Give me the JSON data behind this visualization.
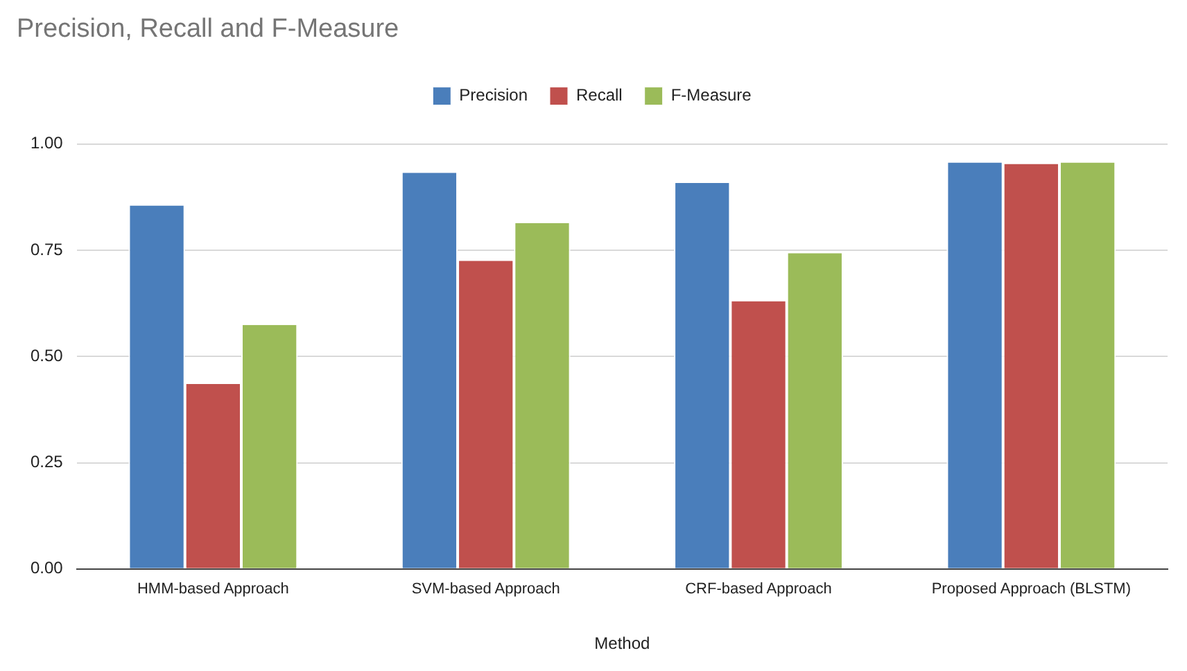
{
  "chart_data": {
    "type": "bar",
    "title": "Precision, Recall and F-Measure",
    "xlabel": "Method",
    "categories": [
      "HMM-based Approach",
      "SVM-based Approach",
      "CRF-based Approach",
      "Proposed Approach (BLSTM)"
    ],
    "series": [
      {
        "name": "Precision",
        "color": "#4a7ebb",
        "values": [
          0.855,
          0.932,
          0.908,
          0.956
        ]
      },
      {
        "name": "Recall",
        "color": "#c0504d",
        "values": [
          0.435,
          0.725,
          0.63,
          0.953
        ]
      },
      {
        "name": "F-Measure",
        "color": "#9bbb59",
        "values": [
          0.574,
          0.814,
          0.743,
          0.956
        ]
      }
    ],
    "ylim": [
      0,
      1
    ],
    "yticks": [
      {
        "value": 0,
        "label": "0.00"
      },
      {
        "value": 0.25,
        "label": "0.25"
      },
      {
        "value": 0.5,
        "label": "0.50"
      },
      {
        "value": 0.75,
        "label": "0.75"
      },
      {
        "value": 1,
        "label": "1.00"
      }
    ],
    "grid": "y",
    "legend": "top"
  }
}
